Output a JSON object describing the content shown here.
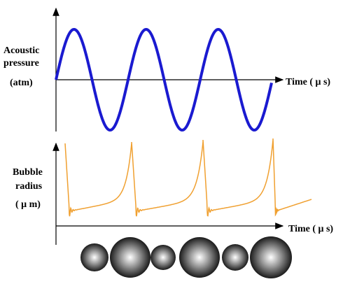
{
  "top_plot": {
    "y_label_line1": "Acoustic",
    "y_label_line2": "pressure",
    "y_unit": "(atm)",
    "x_label": "Time ( μ s)"
  },
  "bottom_plot": {
    "y_label_line1": "Bubble",
    "y_label_line2": "radius",
    "y_unit": "( μ m)",
    "x_label": "Time ( μ s)"
  }
}
